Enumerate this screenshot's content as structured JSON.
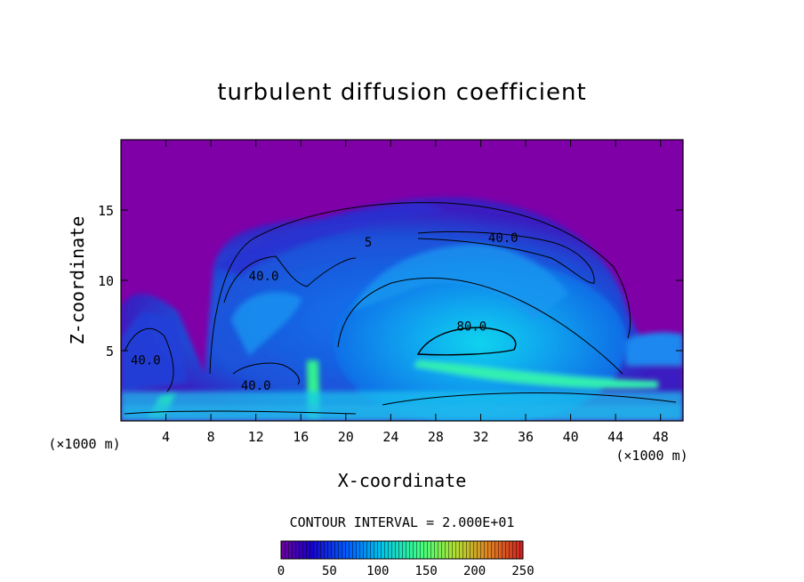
{
  "chart_data": {
    "type": "heatmap",
    "title": "turbulent diffusion coefficient",
    "xlabel": "X-coordinate",
    "ylabel": "Z-coordinate",
    "x_unit_label": "(×1000 m)",
    "y_unit_label": "(×1000 m)",
    "xlim": [
      0,
      50
    ],
    "ylim": [
      0,
      20
    ],
    "x_ticks": [
      4,
      8,
      12,
      16,
      20,
      24,
      28,
      32,
      36,
      40,
      44,
      48
    ],
    "y_ticks": [
      5,
      10,
      15
    ],
    "contour_interval_label": "CONTOUR INTERVAL = 2.000E+01",
    "contour_labels": [
      {
        "text": "40.0",
        "x": 34.0,
        "z": 12.9
      },
      {
        "text": "40.0",
        "x": 12.7,
        "z": 10.2
      },
      {
        "text": "80.0",
        "x": 31.2,
        "z": 6.6
      },
      {
        "text": "40.0",
        "x": 2.2,
        "z": 4.2
      },
      {
        "text": "40.0",
        "x": 12.0,
        "z": 2.4
      },
      {
        "text": "5",
        "x": 22.0,
        "z": 12.6
      }
    ],
    "colorbar": {
      "min": 0,
      "max": 250,
      "ticks": [
        0,
        50,
        100,
        150,
        200,
        250
      ],
      "colormap": [
        "#6f00a0",
        "#1a00c8",
        "#0060ff",
        "#00c8e8",
        "#40ff80",
        "#b0e030",
        "#e08020",
        "#d02020"
      ]
    },
    "background_value_color": "#8000a8",
    "grid": false
  }
}
